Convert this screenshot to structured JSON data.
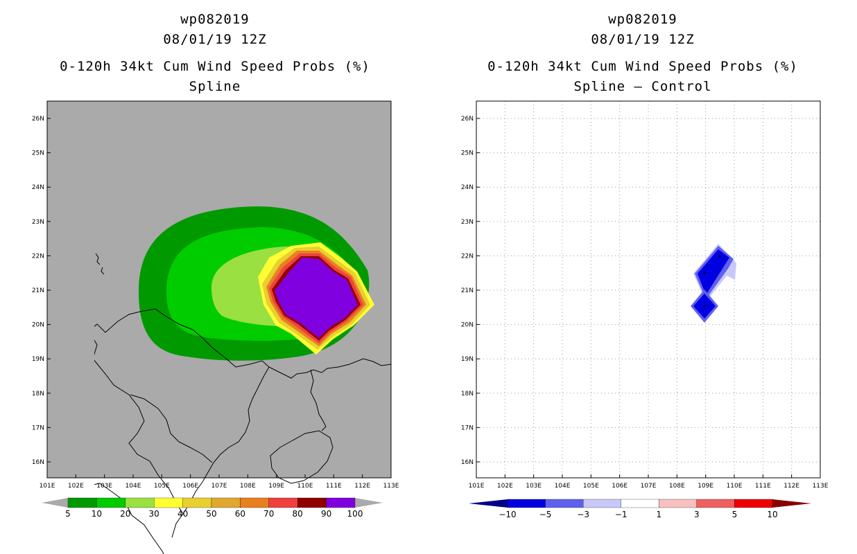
{
  "left_panel": {
    "title_line1": "wp082019",
    "title_line2": "08/01/19 12Z",
    "title_line3": "0-120h 34kt Cum Wind Speed Probs (%)",
    "title_line4": "Spline",
    "colorbar_labels": [
      "5",
      "10",
      "20",
      "30",
      "40",
      "50",
      "60",
      "70",
      "80",
      "90",
      "100"
    ],
    "colorbar_colors": [
      "#009900",
      "#00cc00",
      "#99e040",
      "#ffff33",
      "#e8d030",
      "#e0a830",
      "#e88020",
      "#f04040",
      "#900000",
      "#8000e0"
    ],
    "background_color": "#aaaaaa"
  },
  "right_panel": {
    "title_line1": "wp082019",
    "title_line2": "08/01/19 12Z",
    "title_line3": "0-120h 34kt Cum Wind Speed Probs (%)",
    "title_line4": "Spline – Control",
    "colorbar_labels": [
      "−10",
      "−5",
      "−3",
      "−1",
      "1",
      "3",
      "5",
      "10"
    ],
    "colorbar_colors": [
      "#0000e0",
      "#6060ee",
      "#c8c8f8",
      "#ffffff",
      "#f8c0c0",
      "#f06060",
      "#ee0000"
    ],
    "colorbar_end_low": "#000088",
    "colorbar_end_high": "#880000"
  },
  "axes": {
    "lon_labels": [
      "101E",
      "102E",
      "103E",
      "104E",
      "105E",
      "106E",
      "107E",
      "108E",
      "109E",
      "110E",
      "111E",
      "112E",
      "113E"
    ],
    "lat_labels": [
      "26N",
      "25N",
      "24N",
      "23N",
      "22N",
      "21N",
      "20N",
      "19N",
      "18N",
      "17N",
      "16N"
    ]
  }
}
